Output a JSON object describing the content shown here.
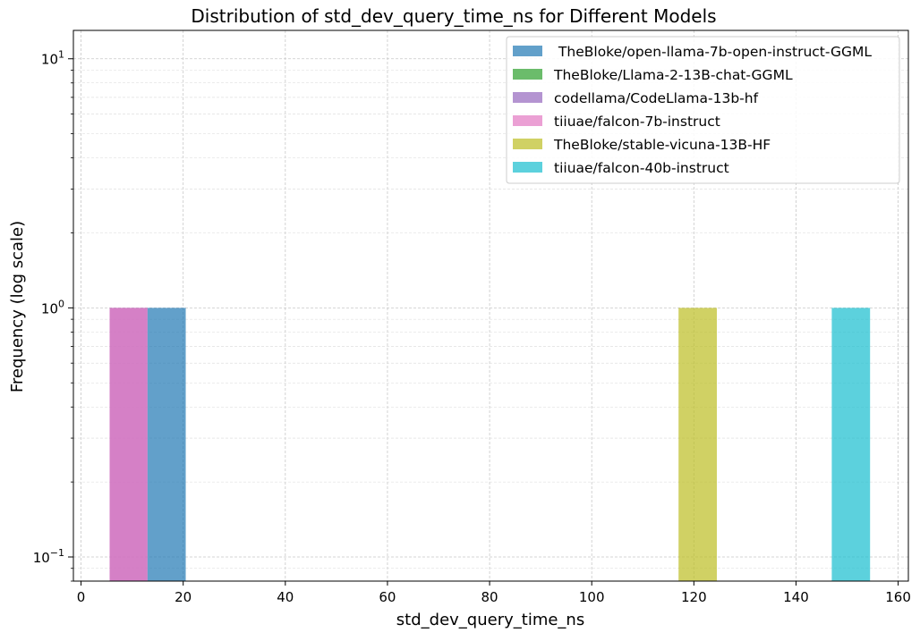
{
  "chart_data": {
    "type": "bar",
    "title": "Distribution of std_dev_query_time_ns for Different Models",
    "xlabel": "std_dev_query_time_ns",
    "ylabel": "Frequency (log scale)",
    "y_scale": "log",
    "xlim": [
      -1.5,
      162
    ],
    "ylim": [
      0.08,
      13
    ],
    "x_ticks": [
      0,
      20,
      40,
      60,
      80,
      100,
      120,
      140,
      160
    ],
    "x_tick_labels": [
      "0",
      "20",
      "40",
      "60",
      "80",
      "100",
      "120",
      "140",
      "160"
    ],
    "y_ticks": [
      0.1,
      1,
      10
    ],
    "y_tick_labels": [
      {
        "base": "10",
        "exp": "−1"
      },
      {
        "base": "10",
        "exp": "0"
      },
      {
        "base": "10",
        "exp": "1"
      }
    ],
    "grid": true,
    "legend_position": "top-right",
    "series": [
      {
        "name": " TheBloke/open-llama-7b-open-instruct-GGML",
        "color": "#1f77b4",
        "bins": [
          {
            "x0": 13.0,
            "x1": 20.5,
            "count": 1
          }
        ]
      },
      {
        "name": "TheBloke/Llama-2-13B-chat-GGML",
        "color": "#2ca02c",
        "bins": []
      },
      {
        "name": "codellama/CodeLlama-13b-hf",
        "color": "#9467bd",
        "bins": [
          {
            "x0": 5.6,
            "x1": 13.0,
            "count": 1
          }
        ]
      },
      {
        "name": "tiiuae/falcon-7b-instruct",
        "color": "#e377c2",
        "bins": [
          {
            "x0": 5.6,
            "x1": 13.0,
            "count": 1
          }
        ]
      },
      {
        "name": "TheBloke/stable-vicuna-13B-HF",
        "color": "#bcbd22",
        "bins": [
          {
            "x0": 117.0,
            "x1": 124.5,
            "count": 1
          }
        ]
      },
      {
        "name": "tiiuae/falcon-40b-instruct",
        "color": "#17becf",
        "bins": [
          {
            "x0": 147.0,
            "x1": 154.5,
            "count": 1
          }
        ]
      }
    ]
  }
}
